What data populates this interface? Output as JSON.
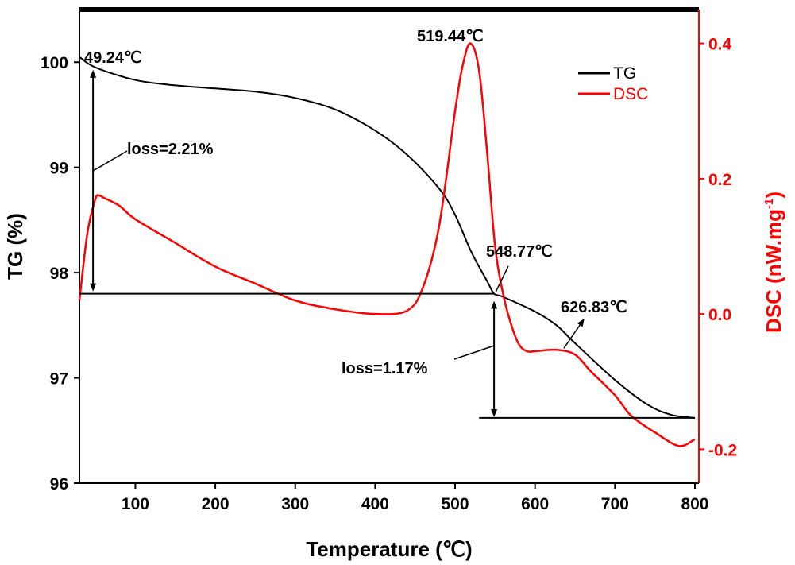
{
  "chart_data": {
    "type": "line",
    "xlabel": "Temperature (℃)",
    "ylabel_left": "TG (%)",
    "ylabel_right": "DSC (nW.mg",
    "ylabel_right_sup": "-1",
    "ylabel_right_suffix": ")",
    "xlim": [
      30,
      805
    ],
    "ylim_left": [
      96,
      100.5
    ],
    "ylim_right": [
      -0.25,
      0.45
    ],
    "xticks": [
      100,
      200,
      300,
      400,
      500,
      600,
      700,
      800
    ],
    "yticks_left": [
      96,
      97,
      98,
      99,
      100
    ],
    "yticks_right": [
      -0.2,
      0.0,
      0.2,
      0.4
    ],
    "ytick_labels_right": [
      "-0.2",
      "0.0",
      "0.2",
      "0.4"
    ],
    "colors": {
      "TG": "#000000",
      "DSC": "#ff0000"
    },
    "legend": {
      "position": "top-right",
      "entries": [
        "TG",
        "DSC"
      ]
    },
    "series": [
      {
        "name": "TG",
        "axis": "left",
        "x": [
          30,
          50,
          100,
          150,
          200,
          250,
          300,
          350,
          400,
          440,
          480,
          500,
          520,
          540,
          548.77,
          560,
          600,
          626.83,
          650,
          700,
          740,
          770,
          800
        ],
        "y": [
          100.05,
          99.95,
          99.83,
          99.78,
          99.75,
          99.72,
          99.66,
          99.55,
          99.35,
          99.12,
          98.8,
          98.55,
          98.2,
          97.92,
          97.8,
          97.77,
          97.63,
          97.5,
          97.33,
          96.98,
          96.75,
          96.65,
          96.62
        ]
      },
      {
        "name": "DSC",
        "axis": "right",
        "x": [
          30,
          40,
          50,
          55,
          60,
          80,
          100,
          150,
          200,
          250,
          300,
          350,
          400,
          440,
          460,
          480,
          500,
          510,
          519.44,
          530,
          540,
          550,
          560,
          570,
          580,
          590,
          600,
          626.83,
          650,
          670,
          700,
          720,
          750,
          780,
          800
        ],
        "y": [
          0.02,
          0.12,
          0.17,
          0.175,
          0.172,
          0.16,
          0.14,
          0.105,
          0.07,
          0.045,
          0.02,
          0.007,
          0.0,
          0.005,
          0.04,
          0.13,
          0.3,
          0.37,
          0.4,
          0.36,
          0.24,
          0.1,
          0.03,
          -0.015,
          -0.045,
          -0.055,
          -0.055,
          -0.053,
          -0.06,
          -0.085,
          -0.12,
          -0.15,
          -0.175,
          -0.195,
          -0.185
        ]
      }
    ],
    "annotations": {
      "peak_start": "49.24℃",
      "peak_dsc": "519.44℃",
      "knee_1": "548.77℃",
      "knee_2": "626.83℃",
      "loss_1": "loss=2.21%",
      "loss_2": "loss=1.17%"
    }
  }
}
